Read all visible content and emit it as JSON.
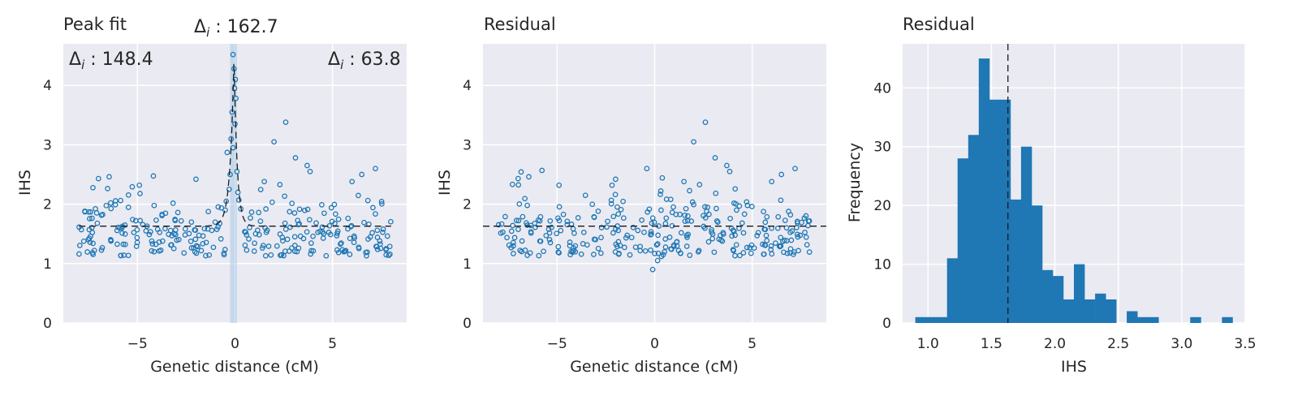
{
  "colors": {
    "panel_bg": "#eaeaf2",
    "grid": "#ffffff",
    "points": "#1f77b4",
    "bars": "#1f77b4",
    "fit_line": "#1a1a1a",
    "peak_band": "#a6c8e6"
  },
  "chart_data": [
    {
      "type": "scatter",
      "title": "Peak fit",
      "xlabel": "Genetic distance (cM)",
      "ylabel": "IHS",
      "xlim": [
        -8.8,
        8.8
      ],
      "ylim": [
        0,
        4.7
      ],
      "xticks": [
        -5,
        0,
        5
      ],
      "xtick_labels": [
        "−5",
        "0",
        "5"
      ],
      "yticks": [
        0,
        1,
        2,
        3,
        4
      ],
      "ytick_labels": [
        "0",
        "1",
        "2",
        "3",
        "4"
      ],
      "grid": true,
      "baseline": 1.63,
      "peak_band": [
        -0.25,
        0.1
      ],
      "fit_curve": {
        "baseline": 1.63,
        "peak_center": -0.05,
        "peak_height": 4.5,
        "left_width": 0.2,
        "right_width": 0.16
      },
      "annotations": [
        {
          "label": "Δi : 148.4",
          "base": "Δ",
          "sub": "i",
          "value": " : 148.4",
          "position": "top-left"
        },
        {
          "label": "Δi : 162.7",
          "base": "Δ",
          "sub": "i",
          "value": " : 162.7",
          "position": "above-peak"
        },
        {
          "label": "Δi : 63.8",
          "base": "Δ",
          "sub": "i",
          "value": " : 63.8",
          "position": "top-right"
        }
      ],
      "peak_points": [
        [
          -0.1,
          4.52
        ],
        [
          -0.05,
          4.28
        ],
        [
          0.02,
          4.1
        ],
        [
          -0.02,
          3.95
        ],
        [
          0.05,
          3.78
        ],
        [
          -0.15,
          3.55
        ],
        [
          0.0,
          3.35
        ],
        [
          -0.2,
          3.1
        ],
        [
          -0.4,
          2.87
        ],
        [
          -0.1,
          2.95
        ],
        [
          0.1,
          2.55
        ],
        [
          -0.3,
          2.25
        ],
        [
          -0.45,
          2.05
        ],
        [
          0.15,
          2.2
        ],
        [
          0.2,
          2.07
        ],
        [
          -0.25,
          2.5
        ],
        [
          0.3,
          1.92
        ],
        [
          -0.5,
          1.9
        ]
      ],
      "outliers": [
        [
          2.6,
          3.38
        ],
        [
          2.0,
          3.05
        ],
        [
          3.1,
          2.78
        ],
        [
          3.7,
          2.65
        ],
        [
          3.85,
          2.55
        ],
        [
          7.2,
          2.6
        ],
        [
          6.5,
          2.5
        ],
        [
          -7.0,
          2.43
        ],
        [
          -6.45,
          2.46
        ],
        [
          -2.0,
          2.42
        ],
        [
          1.5,
          2.38
        ],
        [
          2.3,
          2.33
        ],
        [
          -4.9,
          2.32
        ],
        [
          6.0,
          2.38
        ]
      ],
      "scatter_seed": 7,
      "scatter_count": 300
    },
    {
      "type": "scatter",
      "title": "Residual",
      "xlabel": "Genetic distance (cM)",
      "ylabel": "IHS",
      "xlim": [
        -8.8,
        8.8
      ],
      "ylim": [
        0,
        4.7
      ],
      "xticks": [
        -5,
        0,
        5
      ],
      "xtick_labels": [
        "−5",
        "0",
        "5"
      ],
      "yticks": [
        0,
        1,
        2,
        3,
        4
      ],
      "ytick_labels": [
        "0",
        "1",
        "2",
        "3",
        "4"
      ],
      "grid": true,
      "baseline": 1.63,
      "outliers": [
        [
          2.6,
          3.38
        ],
        [
          2.0,
          3.05
        ],
        [
          3.1,
          2.78
        ],
        [
          3.7,
          2.65
        ],
        [
          3.85,
          2.55
        ],
        [
          7.2,
          2.6
        ],
        [
          6.5,
          2.5
        ],
        [
          -7.0,
          2.43
        ],
        [
          -6.45,
          2.46
        ],
        [
          -2.0,
          2.42
        ],
        [
          -0.4,
          2.6
        ],
        [
          1.5,
          2.38
        ],
        [
          2.3,
          2.33
        ],
        [
          -4.9,
          2.32
        ],
        [
          6.0,
          2.38
        ],
        [
          -0.1,
          0.9
        ],
        [
          0.15,
          1.05
        ],
        [
          0.35,
          1.12
        ]
      ],
      "scatter_seed": 11,
      "scatter_count": 300
    },
    {
      "type": "bar",
      "subtype": "histogram",
      "title": "Residual",
      "xlabel": "IHS",
      "ylabel": "Frequency",
      "xlim": [
        0.8,
        3.5
      ],
      "ylim": [
        0,
        47.5
      ],
      "xticks": [
        1.0,
        1.5,
        2.0,
        2.5,
        3.0,
        3.5
      ],
      "xtick_labels": [
        "1.0",
        "1.5",
        "2.0",
        "2.5",
        "3.0",
        "3.5"
      ],
      "yticks": [
        0,
        10,
        20,
        30,
        40
      ],
      "ytick_labels": [
        "0",
        "10",
        "20",
        "30",
        "40"
      ],
      "grid": true,
      "median_line": 1.63,
      "bin_edges": [
        0.9,
        0.9833,
        1.0667,
        1.15,
        1.2333,
        1.3167,
        1.4,
        1.4833,
        1.5667,
        1.65,
        1.7333,
        1.8167,
        1.9,
        1.9833,
        2.0667,
        2.15,
        2.2333,
        2.3167,
        2.4,
        2.4833,
        2.5667,
        2.65,
        2.7333,
        2.8167,
        2.9,
        2.9833,
        3.0667,
        3.15,
        3.2333,
        3.3167,
        3.4
      ],
      "values": [
        1,
        1,
        1,
        11,
        28,
        32,
        45,
        38,
        38,
        21,
        30,
        20,
        9,
        8,
        4,
        10,
        4,
        5,
        4,
        0,
        2,
        1,
        1,
        0,
        0,
        0,
        1,
        0,
        0,
        1
      ]
    }
  ]
}
